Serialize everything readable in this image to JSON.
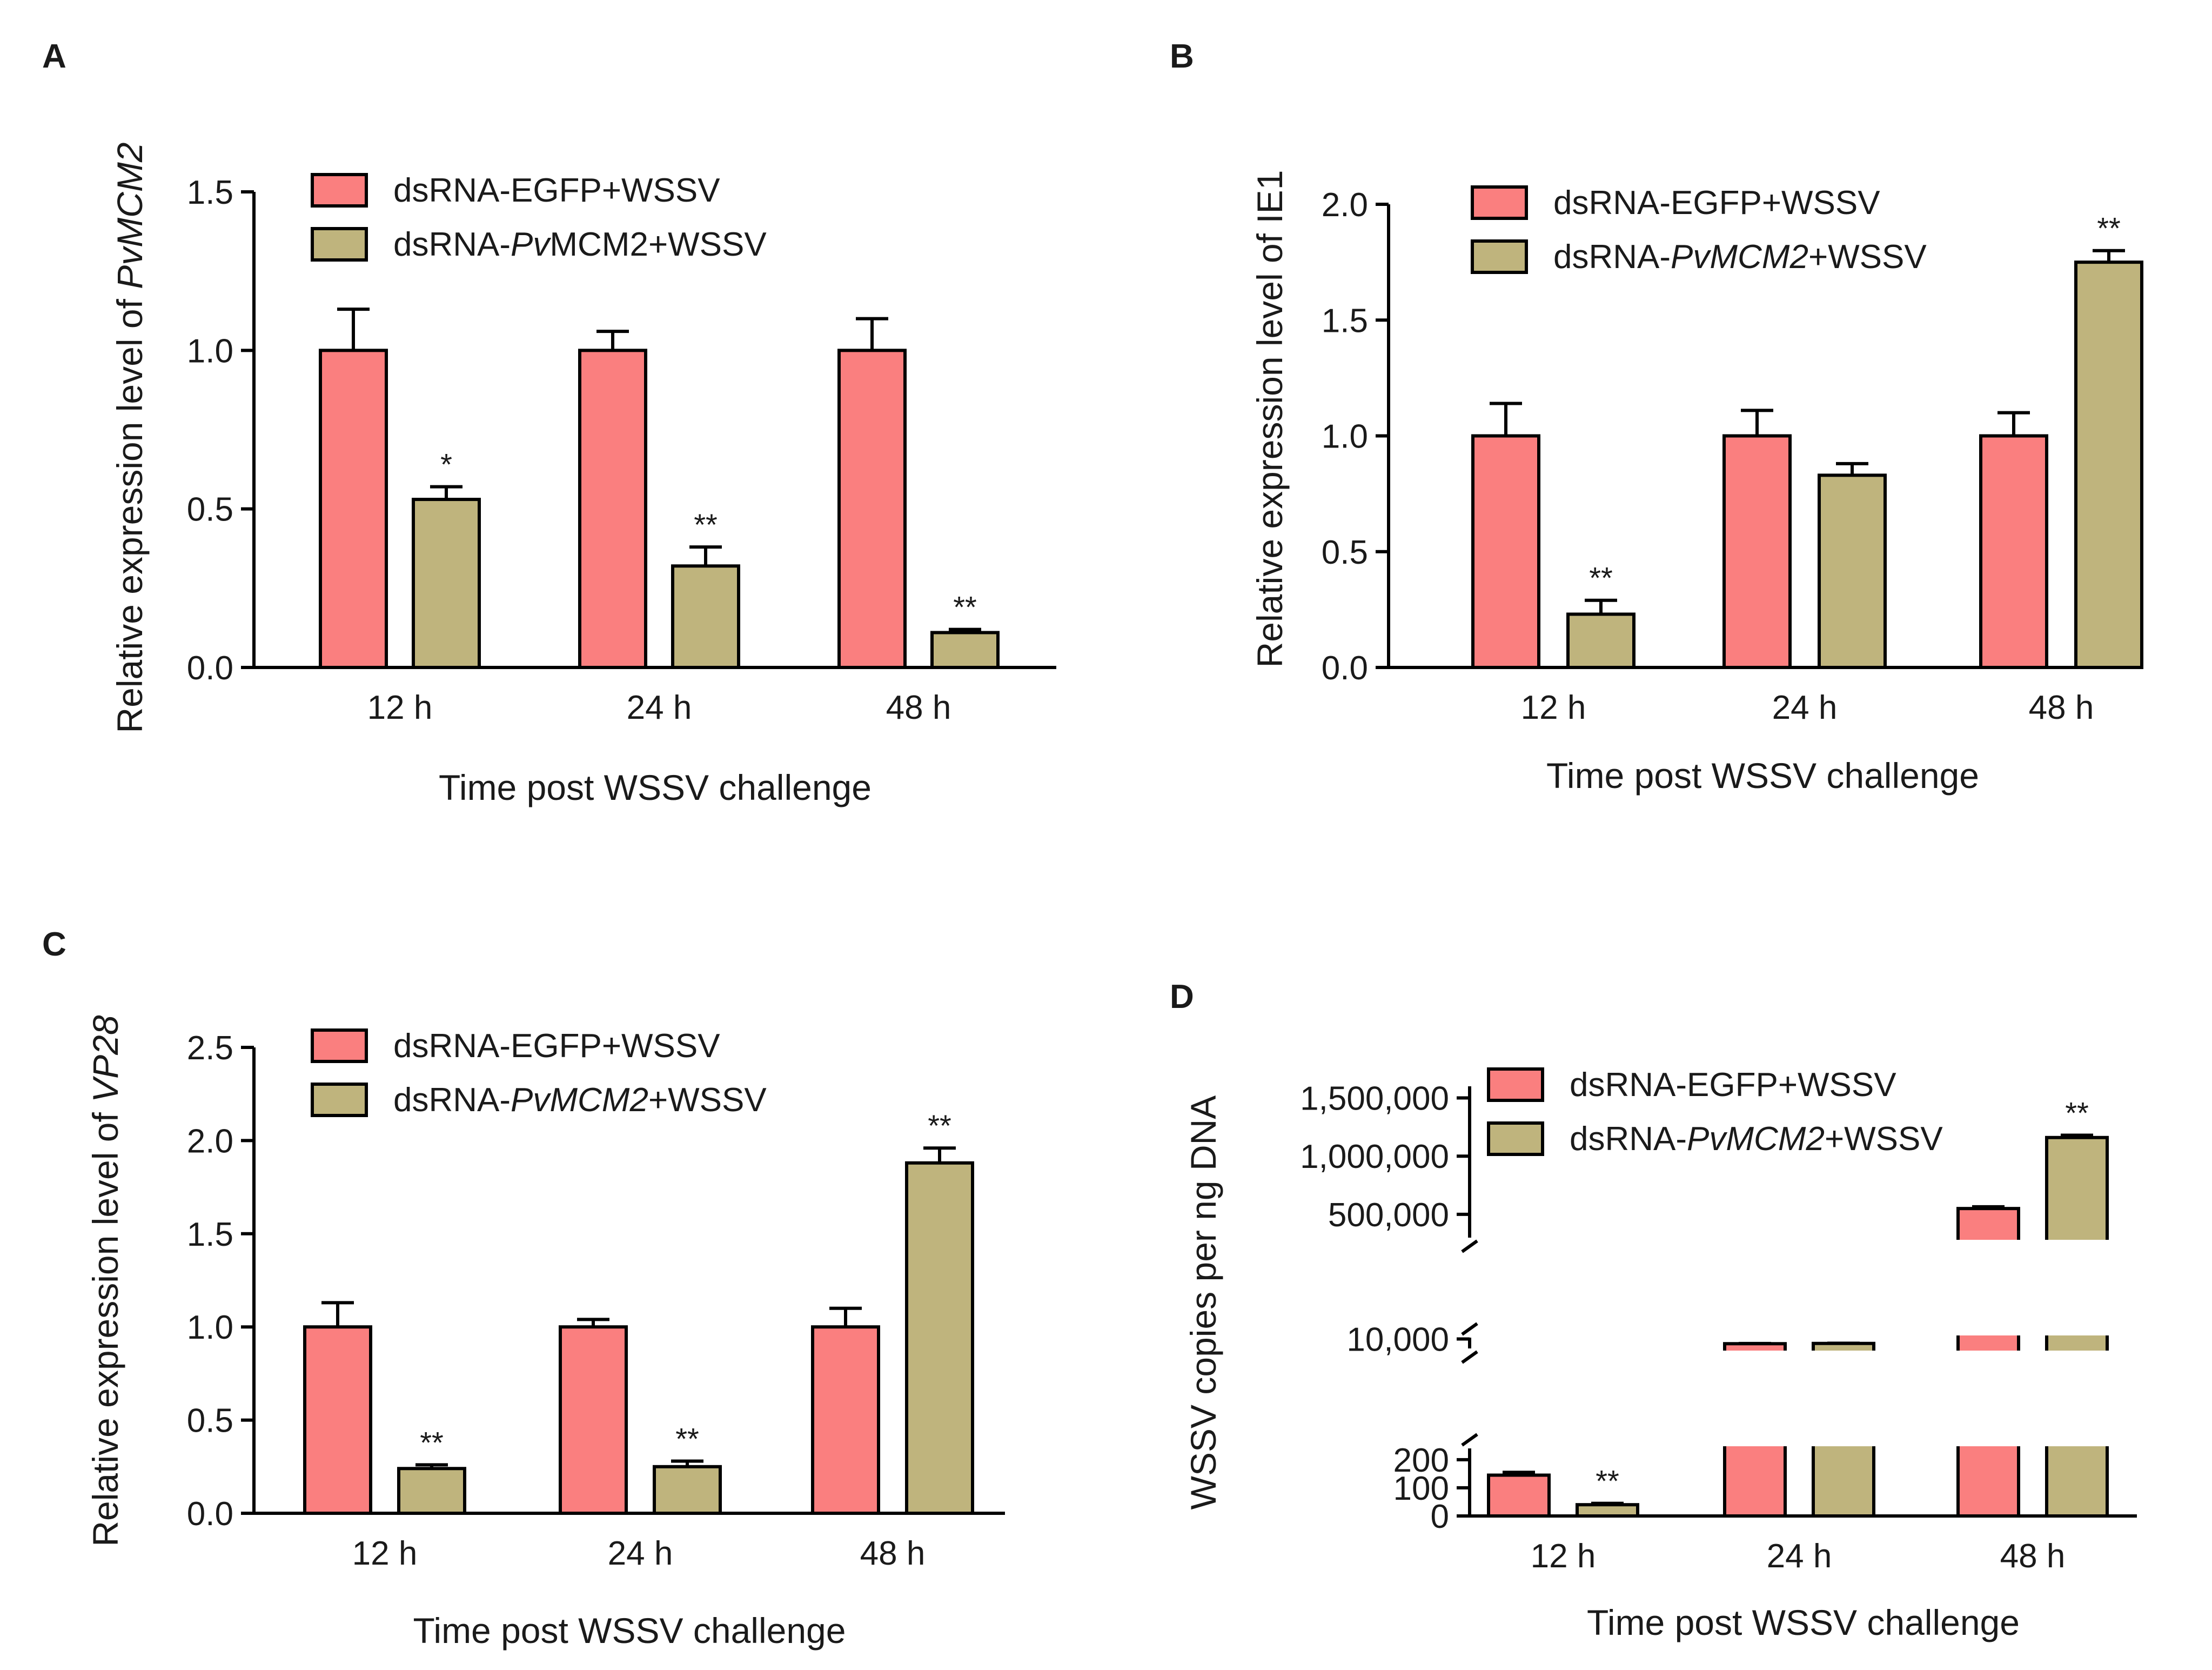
{
  "colors": {
    "series1": "#FA7F7F",
    "series2": "#BFB47D",
    "stroke": "#000000"
  },
  "chart_data": [
    {
      "panel": "A",
      "type": "bar",
      "categories": [
        "12 h",
        "24 h",
        "48 h"
      ],
      "series": [
        {
          "name": "dsRNA-EGFP+WSSV",
          "values": [
            1.0,
            1.0,
            1.0
          ],
          "errors": [
            0.13,
            0.06,
            0.1
          ],
          "stars": [
            "",
            "",
            ""
          ]
        },
        {
          "name": "dsRNA-PvMCM2+WSSV",
          "values": [
            0.53,
            0.32,
            0.11
          ],
          "errors": [
            0.04,
            0.06,
            0.01
          ],
          "stars": [
            "*",
            "**",
            "**"
          ]
        }
      ],
      "legend": [
        {
          "prefix": "dsRNA-EGFP+WSSV",
          "italic": "",
          "suffix": ""
        },
        {
          "prefix": "dsRNA-",
          "italic": "Pv",
          "suffix": "MCM2+WSSV"
        }
      ],
      "xlabel": "Time post WSSV challenge",
      "ylabel": {
        "prefix": "Relative expression level of ",
        "italic": "PvMCM2"
      },
      "ylim": [
        0,
        1.5
      ],
      "yticks": [
        "0.0",
        "0.5",
        "1.0",
        "1.5"
      ]
    },
    {
      "panel": "B",
      "type": "bar",
      "categories": [
        "12 h",
        "24 h",
        "48 h"
      ],
      "series": [
        {
          "name": "dsRNA-EGFP+WSSV",
          "values": [
            1.0,
            1.0,
            1.0
          ],
          "errors": [
            0.14,
            0.11,
            0.1
          ],
          "stars": [
            "",
            "",
            ""
          ]
        },
        {
          "name": "dsRNA-PvMCM2+WSSV",
          "values": [
            0.23,
            0.83,
            1.75
          ],
          "errors": [
            0.06,
            0.05,
            0.05
          ],
          "stars": [
            "**",
            "",
            "**"
          ]
        }
      ],
      "legend": [
        {
          "prefix": "dsRNA-EGFP+WSSV",
          "italic": "",
          "suffix": ""
        },
        {
          "prefix": "dsRNA-",
          "italic": "PvMCM2",
          "suffix": "+WSSV"
        }
      ],
      "xlabel": "Time post WSSV challenge",
      "ylabel": {
        "prefix": "Relative expression level of IE1",
        "italic": ""
      },
      "ylim": [
        0,
        2.0
      ],
      "yticks": [
        "0.0",
        "0.5",
        "1.0",
        "1.5",
        "2.0"
      ]
    },
    {
      "panel": "C",
      "type": "bar",
      "categories": [
        "12 h",
        "24 h",
        "48 h"
      ],
      "series": [
        {
          "name": "dsRNA-EGFP+WSSV",
          "values": [
            1.0,
            1.0,
            1.0
          ],
          "errors": [
            0.13,
            0.04,
            0.1
          ],
          "stars": [
            "",
            "",
            ""
          ]
        },
        {
          "name": "dsRNA-PvMCM2+WSSV",
          "values": [
            0.24,
            0.25,
            1.88
          ],
          "errors": [
            0.02,
            0.03,
            0.08
          ],
          "stars": [
            "**",
            "**",
            "**"
          ]
        }
      ],
      "legend": [
        {
          "prefix": "dsRNA-EGFP+WSSV",
          "italic": "",
          "suffix": ""
        },
        {
          "prefix": "dsRNA-",
          "italic": "PvMCM2",
          "suffix": "+WSSV"
        }
      ],
      "xlabel": "Time post WSSV challenge",
      "ylabel": {
        "prefix": "Relative expression level of ",
        "italic": "VP28"
      },
      "ylim": [
        0,
        2.5
      ],
      "yticks": [
        "0.0",
        "0.5",
        "1.0",
        "1.5",
        "2.0",
        "2.5"
      ]
    },
    {
      "panel": "D",
      "type": "bar",
      "axis_breaks": true,
      "categories": [
        "12 h",
        "24 h",
        "48 h"
      ],
      "series": [
        {
          "name": "dsRNA-EGFP+WSSV",
          "values": [
            145,
            6500,
            550000
          ],
          "errors": [
            10,
            150,
            15000
          ],
          "stars": [
            "",
            "",
            ""
          ]
        },
        {
          "name": "dsRNA-PvMCM2+WSSV",
          "values": [
            40,
            6700,
            1160000
          ],
          "errors": [
            5,
            150,
            20000
          ],
          "stars": [
            "**",
            "",
            "**"
          ]
        }
      ],
      "legend": [
        {
          "prefix": "dsRNA-EGFP+WSSV",
          "italic": "",
          "suffix": ""
        },
        {
          "prefix": "dsRNA-",
          "italic": "PvMCM2",
          "suffix": "+WSSV"
        }
      ],
      "xlabel": "Time post WSSV challenge",
      "ylabel": {
        "prefix": "WSSV copies per ng DNA",
        "italic": ""
      },
      "segments": [
        {
          "range": [
            0,
            240
          ],
          "ticks": [
            0,
            100,
            200
          ],
          "labels": [
            "0",
            "100",
            "200"
          ]
        },
        {
          "range": [
            3000,
            11000
          ],
          "ticks": [
            10000
          ],
          "labels": [
            "10,000"
          ]
        },
        {
          "range": [
            300000,
            1600000
          ],
          "ticks": [
            500000,
            1000000,
            1500000
          ],
          "labels": [
            "500,000",
            "1,000,000",
            "1,500,000"
          ]
        }
      ]
    }
  ]
}
